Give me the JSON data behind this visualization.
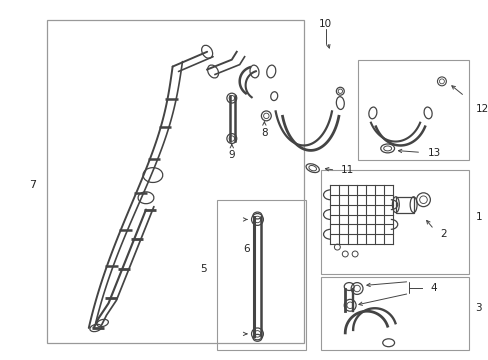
{
  "bg_color": "#ffffff",
  "line_color": "#444444",
  "box_color": "#999999",
  "figsize": [
    4.89,
    3.6
  ],
  "dpi": 100
}
